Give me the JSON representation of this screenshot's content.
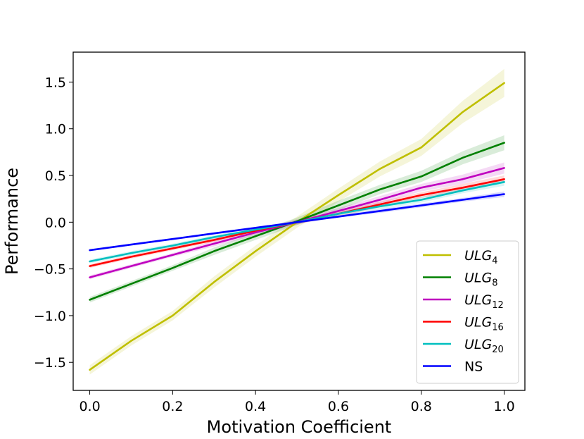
{
  "chart_data": {
    "type": "line",
    "title": "",
    "xlabel": "Motivation Coefficient",
    "ylabel": "Performance",
    "xlim": [
      -0.04,
      1.05
    ],
    "ylim": [
      -1.8,
      1.82
    ],
    "x": [
      0.0,
      0.1,
      0.2,
      0.3,
      0.4,
      0.5,
      0.6,
      0.7,
      0.8,
      0.9,
      1.0
    ],
    "x_ticks": [
      0.0,
      0.2,
      0.4,
      0.6,
      0.8,
      1.0
    ],
    "x_tick_labels": [
      "0.0",
      "0.2",
      "0.4",
      "0.6",
      "0.8",
      "1.0"
    ],
    "y_ticks": [
      -1.5,
      -1.0,
      -0.5,
      0.0,
      0.5,
      1.0,
      1.5
    ],
    "y_tick_labels": [
      "−1.5",
      "−1.0",
      "−0.5",
      "0.0",
      "0.5",
      "1.0",
      "1.5"
    ],
    "grid": false,
    "legend_position": "lower-right",
    "series": [
      {
        "name": "ULG",
        "sub": "4",
        "italic": true,
        "color": "#bfbf00",
        "values": [
          -1.58,
          -1.27,
          -1.0,
          -0.64,
          -0.31,
          0.0,
          0.29,
          0.57,
          0.8,
          1.18,
          1.49
        ],
        "band": [
          0.05,
          0.05,
          0.05,
          0.06,
          0.06,
          0.06,
          0.07,
          0.08,
          0.09,
          0.12,
          0.15
        ]
      },
      {
        "name": "ULG",
        "sub": "8",
        "italic": true,
        "color": "#008000",
        "values": [
          -0.83,
          -0.66,
          -0.49,
          -0.31,
          -0.15,
          0.01,
          0.18,
          0.35,
          0.49,
          0.69,
          0.85
        ],
        "band": [
          0.03,
          0.03,
          0.03,
          0.04,
          0.04,
          0.04,
          0.05,
          0.05,
          0.06,
          0.07,
          0.08
        ]
      },
      {
        "name": "ULG",
        "sub": "12",
        "italic": true,
        "color": "#bf00bf",
        "values": [
          -0.59,
          -0.47,
          -0.35,
          -0.23,
          -0.11,
          0.0,
          0.12,
          0.24,
          0.37,
          0.46,
          0.58
        ],
        "band": [
          0.02,
          0.02,
          0.02,
          0.03,
          0.03,
          0.03,
          0.03,
          0.04,
          0.04,
          0.05,
          0.06
        ]
      },
      {
        "name": "ULG",
        "sub": "16",
        "italic": true,
        "color": "#ff0000",
        "values": [
          -0.47,
          -0.37,
          -0.28,
          -0.19,
          -0.09,
          0.0,
          0.09,
          0.19,
          0.29,
          0.37,
          0.46
        ],
        "band": [
          0.02,
          0.02,
          0.02,
          0.02,
          0.02,
          0.02,
          0.03,
          0.03,
          0.03,
          0.04,
          0.04
        ]
      },
      {
        "name": "ULG",
        "sub": "20",
        "italic": true,
        "color": "#00bfbf",
        "values": [
          -0.42,
          -0.33,
          -0.25,
          -0.16,
          -0.08,
          0.0,
          0.09,
          0.17,
          0.24,
          0.34,
          0.43
        ],
        "band": [
          0.02,
          0.02,
          0.02,
          0.02,
          0.02,
          0.02,
          0.02,
          0.03,
          0.03,
          0.03,
          0.04
        ]
      },
      {
        "name": "NS",
        "sub": "",
        "italic": false,
        "color": "#0000ff",
        "values": [
          -0.3,
          -0.24,
          -0.18,
          -0.12,
          -0.06,
          0.0,
          0.06,
          0.12,
          0.18,
          0.24,
          0.3
        ],
        "band": [
          0.01,
          0.01,
          0.01,
          0.01,
          0.01,
          0.01,
          0.01,
          0.02,
          0.02,
          0.02,
          0.03
        ]
      }
    ]
  }
}
